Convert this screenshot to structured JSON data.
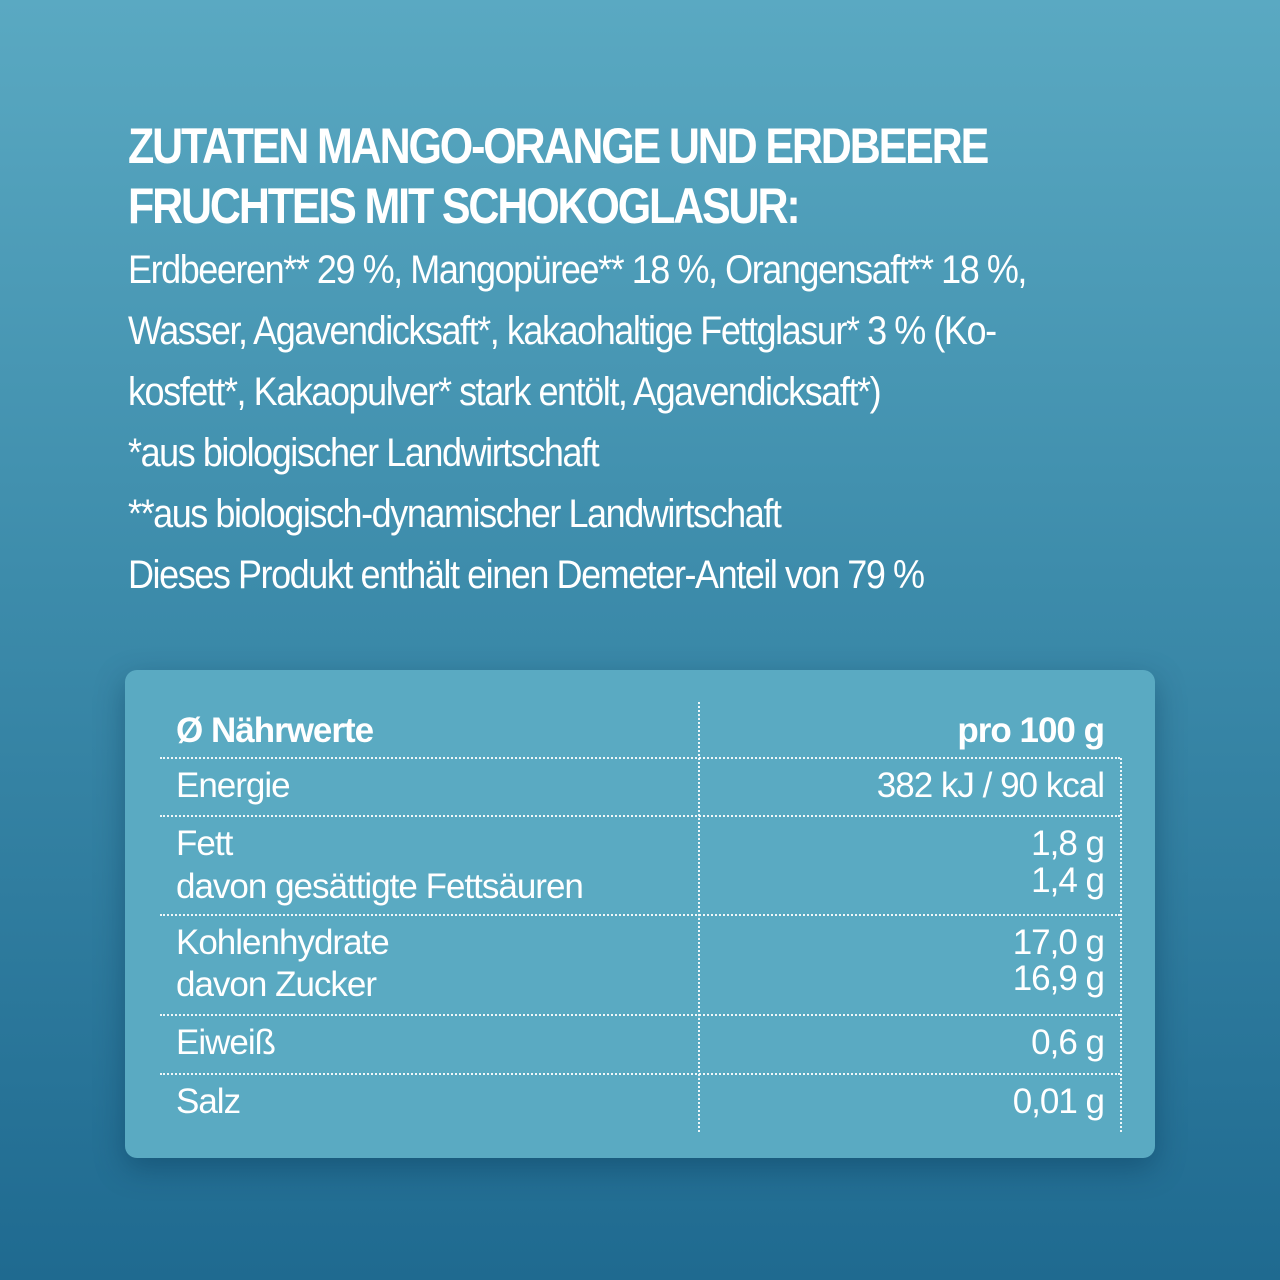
{
  "heading": [
    "ZUTATEN MANGO-ORANGE UND ERDBEERE",
    "FRUCHTEIS MIT SCHOKOGLASUR:"
  ],
  "ingredients": [
    "Erdbeeren** 29 %, Mangopüree** 18 %, Orangensaft** 18 %,",
    "Wasser, Agavendicksaft*, kakaohaltige Fettglasur* 3 % (Ko-",
    "kosfett*, Kakaopulver* stark entölt, Agavendicksaft*)",
    "*aus biologischer Landwirtschaft",
    "**aus biologisch-dynamischer Landwirtschaft",
    "Dieses Produkt enthält einen Demeter-Anteil von 79 %"
  ],
  "nutrition": {
    "header_label": "Ø Nährwerte",
    "header_value": "pro 100 g",
    "rows": [
      {
        "labels": [
          "Energie"
        ],
        "values": [
          "382 kJ / 90 kcal"
        ]
      },
      {
        "labels": [
          "Fett",
          "davon gesättigte Fettsäuren"
        ],
        "values": [
          "1,8 g",
          "1,4 g"
        ]
      },
      {
        "labels": [
          "Kohlenhydrate",
          "davon Zucker"
        ],
        "values": [
          "17,0 g",
          "16,9 g"
        ]
      },
      {
        "labels": [
          "Eiweiß"
        ],
        "values": [
          "0,6 g"
        ]
      },
      {
        "labels": [
          "Salz"
        ],
        "values": [
          "0,01 g"
        ]
      }
    ]
  },
  "colors": {
    "background_top": "#5aa9c2",
    "background_bottom": "#1f6a90",
    "card": "#5aaac2",
    "text": "#ffffff"
  }
}
